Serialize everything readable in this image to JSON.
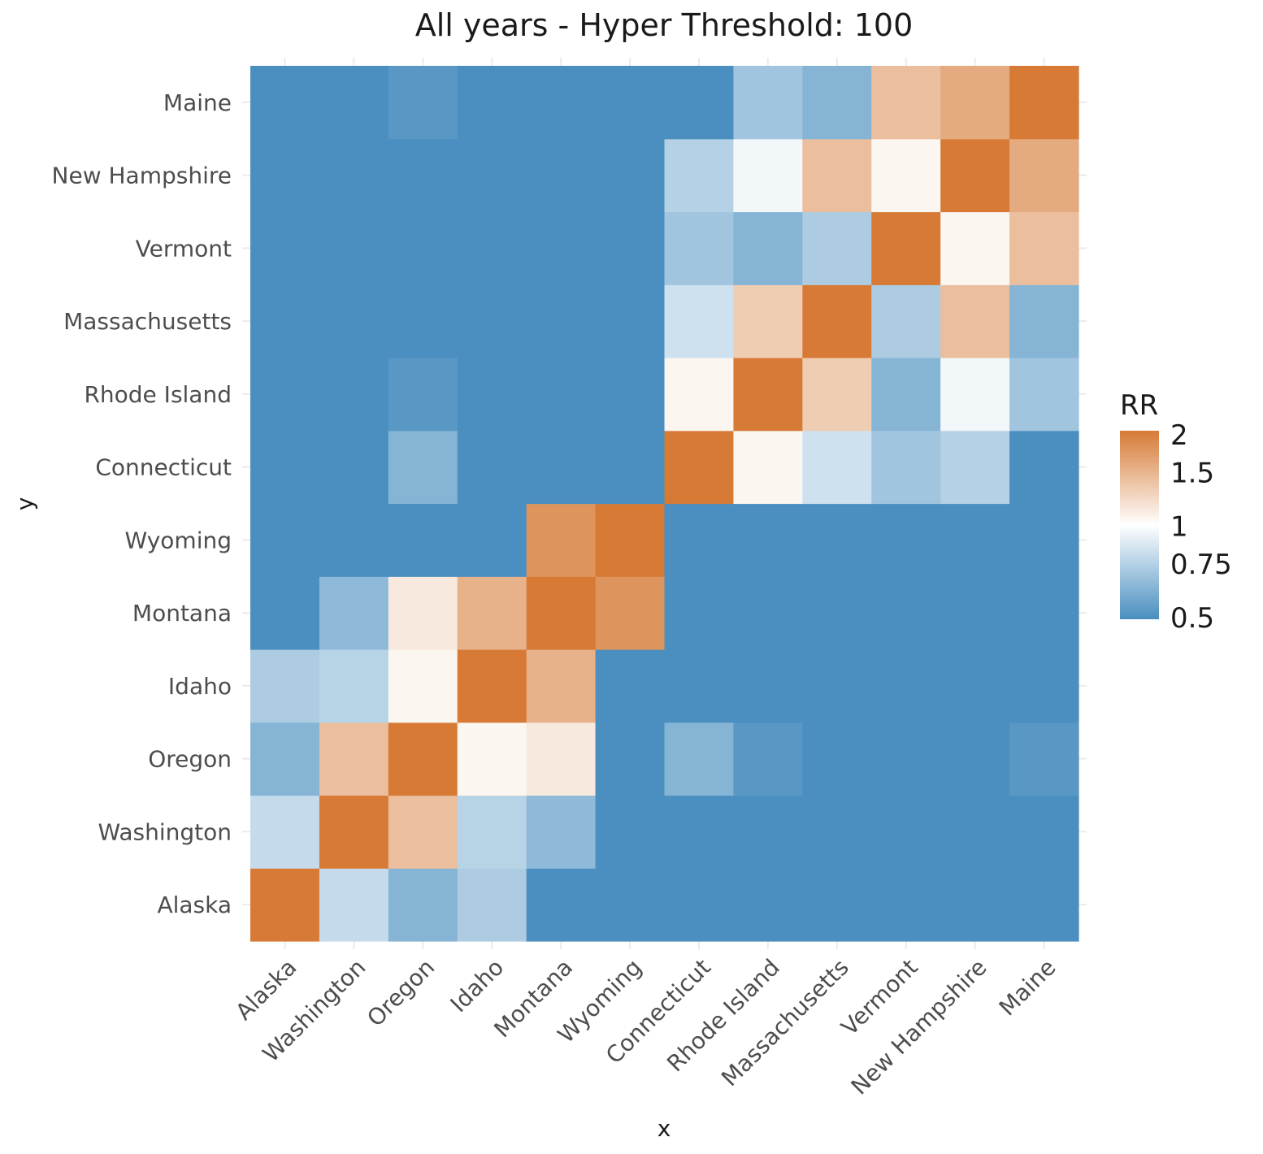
{
  "chart_data": {
    "type": "heatmap",
    "title": "All years - Hyper Threshold: 100",
    "xlabel": "x",
    "ylabel": "y",
    "x_categories": [
      "Alaska",
      "Washington",
      "Oregon",
      "Idaho",
      "Montana",
      "Wyoming",
      "Connecticut",
      "Rhode Island",
      "Massachusetts",
      "Vermont",
      "New Hampshire",
      "Maine"
    ],
    "y_categories": [
      "Alaska",
      "Washington",
      "Oregon",
      "Idaho",
      "Montana",
      "Wyoming",
      "Connecticut",
      "Rhode Island",
      "Massachusetts",
      "Vermont",
      "New Hampshire",
      "Maine"
    ],
    "values": [
      [
        2.0,
        0.8,
        0.63,
        0.73,
        0.5,
        0.5,
        0.5,
        0.5,
        0.5,
        0.5,
        0.5,
        0.5
      ],
      [
        0.8,
        2.0,
        1.4,
        0.76,
        0.65,
        0.5,
        0.5,
        0.5,
        0.5,
        0.5,
        0.5,
        0.5
      ],
      [
        0.63,
        1.4,
        2.0,
        1.05,
        1.12,
        0.5,
        0.63,
        0.53,
        0.5,
        0.5,
        0.5,
        0.53
      ],
      [
        0.73,
        0.76,
        1.05,
        2.0,
        1.5,
        0.5,
        0.5,
        0.5,
        0.5,
        0.5,
        0.5,
        0.5
      ],
      [
        0.5,
        0.65,
        1.12,
        1.5,
        2.0,
        1.75,
        0.5,
        0.5,
        0.5,
        0.5,
        0.5,
        0.5
      ],
      [
        0.5,
        0.5,
        0.5,
        0.5,
        1.75,
        2.0,
        0.5,
        0.5,
        0.5,
        0.5,
        0.5,
        0.5
      ],
      [
        0.5,
        0.5,
        0.63,
        0.5,
        0.5,
        0.5,
        2.0,
        1.05,
        0.83,
        0.7,
        0.75,
        0.5
      ],
      [
        0.5,
        0.5,
        0.53,
        0.5,
        0.5,
        0.5,
        1.05,
        2.0,
        1.3,
        0.63,
        0.95,
        0.7
      ],
      [
        0.5,
        0.5,
        0.5,
        0.5,
        0.5,
        0.5,
        0.83,
        1.3,
        2.0,
        0.73,
        1.4,
        0.63
      ],
      [
        0.5,
        0.5,
        0.5,
        0.5,
        0.5,
        0.5,
        0.7,
        0.63,
        0.73,
        2.0,
        1.05,
        1.4
      ],
      [
        0.5,
        0.5,
        0.5,
        0.5,
        0.5,
        0.5,
        0.75,
        0.95,
        1.4,
        1.05,
        2.0,
        1.55
      ],
      [
        0.5,
        0.5,
        0.53,
        0.5,
        0.5,
        0.5,
        0.5,
        0.7,
        0.63,
        1.4,
        1.55,
        2.0
      ]
    ],
    "legend": {
      "title": "RR",
      "labels": [
        "2",
        "1.5",
        "1",
        "0.75",
        "0.5"
      ],
      "label_values": [
        2,
        1.5,
        1,
        0.75,
        0.5
      ],
      "scale": "log",
      "placement": "right",
      "low_color": "#4a8fc0",
      "mid_color": "#ffffff",
      "high_color": "#d67a36"
    },
    "grid": true
  }
}
